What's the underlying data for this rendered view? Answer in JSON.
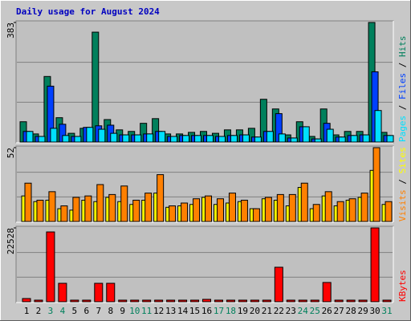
{
  "chart_data": [
    {
      "type": "bar",
      "title": "Daily usage for August 2024",
      "ylim": [
        0,
        383
      ],
      "yticks": [
        383
      ],
      "series": [
        {
          "name": "Hits",
          "color": "#00805c",
          "values": [
            65,
            26,
            210,
            78,
            28,
            44,
            352,
            72,
            39,
            34,
            60,
            75,
            26,
            26,
            31,
            34,
            28,
            39,
            39,
            44,
            137,
            106,
            23,
            65,
            18,
            106,
            23,
            34,
            34,
            383,
            31
          ]
        },
        {
          "name": "Files",
          "color": "#0040ff",
          "values": [
            34,
            18,
            179,
            57,
            18,
            47,
            52,
            54,
            23,
            23,
            26,
            34,
            18,
            21,
            21,
            21,
            18,
            21,
            23,
            16,
            34,
            91,
            13,
            49,
            10,
            60,
            16,
            21,
            23,
            225,
            21
          ]
        },
        {
          "name": "Pages",
          "color": "#00e0ff",
          "values": [
            34,
            18,
            44,
            21,
            18,
            47,
            41,
            28,
            23,
            23,
            26,
            34,
            18,
            21,
            21,
            21,
            18,
            21,
            23,
            16,
            34,
            26,
            13,
            49,
            10,
            41,
            16,
            21,
            23,
            101,
            21
          ]
        }
      ]
    },
    {
      "type": "bar",
      "ylim": [
        0,
        52
      ],
      "yticks": [
        52
      ],
      "series": [
        {
          "name": "Sites",
          "color": "#ffff00",
          "values": [
            18,
            14,
            15,
            9,
            8,
            15,
            14,
            17,
            14,
            12,
            15,
            20,
            10,
            11,
            12,
            17,
            12,
            13,
            14,
            9,
            16,
            15,
            11,
            24,
            9,
            18,
            11,
            15,
            17,
            36,
            12
          ]
        },
        {
          "name": "Visits",
          "color": "#ff8000",
          "values": [
            27,
            15,
            21,
            11,
            17,
            18,
            26,
            19,
            25,
            15,
            20,
            33,
            11,
            13,
            16,
            18,
            16,
            20,
            15,
            9,
            17,
            19,
            19,
            27,
            12,
            21,
            14,
            16,
            20,
            52,
            14
          ]
        }
      ]
    },
    {
      "type": "bar",
      "ylim": [
        0,
        22528
      ],
      "yticks": [
        22528
      ],
      "categories": [
        "1",
        "2",
        "3",
        "4",
        "5",
        "6",
        "7",
        "8",
        "9",
        "10",
        "11",
        "12",
        "13",
        "14",
        "15",
        "16",
        "17",
        "18",
        "19",
        "20",
        "21",
        "22",
        "23",
        "24",
        "25",
        "26",
        "27",
        "28",
        "29",
        "30",
        "31"
      ],
      "category_colors": [
        "#000000",
        "#000000",
        "#00805c",
        "#00805c",
        "#000000",
        "#000000",
        "#000000",
        "#000000",
        "#000000",
        "#00805c",
        "#00805c",
        "#000000",
        "#000000",
        "#000000",
        "#000000",
        "#000000",
        "#00805c",
        "#00805c",
        "#000000",
        "#000000",
        "#000000",
        "#000000",
        "#000000",
        "#00805c",
        "#00805c",
        "#000000",
        "#000000",
        "#000000",
        "#000000",
        "#000000",
        "#00805c"
      ],
      "series": [
        {
          "name": "KBytes",
          "color": "#ff0000",
          "values": [
            980,
            490,
            21300,
            5630,
            490,
            490,
            5630,
            5630,
            490,
            490,
            490,
            490,
            490,
            490,
            490,
            735,
            490,
            490,
            490,
            490,
            490,
            10530,
            490,
            490,
            490,
            5880,
            490,
            490,
            490,
            22528,
            490
          ]
        }
      ]
    }
  ]
}
